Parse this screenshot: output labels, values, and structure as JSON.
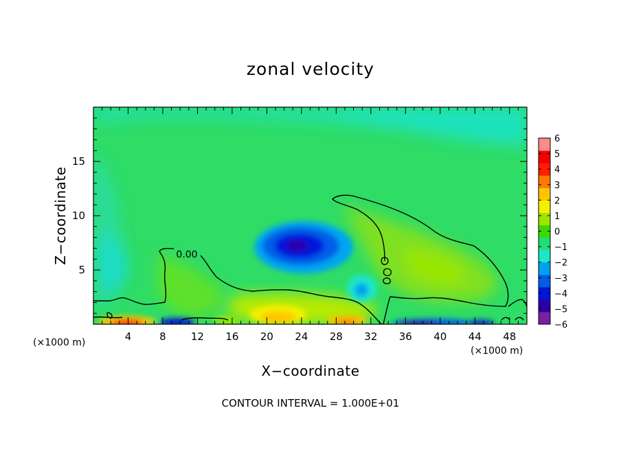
{
  "chart_data": {
    "type": "heatmap",
    "title": "zonal velocity",
    "xlabel": "X−coordinate",
    "ylabel": "Z−coordinate",
    "x_unit_left": "(×1000 m)",
    "x_unit_right": "(×1000 m)",
    "footnote": "CONTOUR INTERVAL = 1.000E+01",
    "xlim": [
      0,
      50
    ],
    "ylim": [
      0,
      20
    ],
    "x_ticks": [
      4,
      8,
      12,
      16,
      20,
      24,
      28,
      32,
      36,
      40,
      44,
      48
    ],
    "x_tick_labels": [
      "4",
      "8",
      "12",
      "16",
      "20",
      "24",
      "28",
      "32",
      "36",
      "40",
      "44",
      "48"
    ],
    "y_ticks": [
      5,
      10,
      15
    ],
    "y_tick_labels": [
      "5",
      "10",
      "15"
    ],
    "contour_label": "0.00",
    "colorbar": {
      "min": -6,
      "max": 6,
      "tick_labels": [
        "6",
        "5",
        "4",
        "3",
        "2",
        "1",
        "0",
        "−1",
        "−2",
        "−3",
        "−4",
        "−5",
        "−6"
      ],
      "colors": [
        "#7a1fa2",
        "#2b00a8",
        "#0016d9",
        "#005ee8",
        "#00a2f0",
        "#1ee6c8",
        "#1fde7c",
        "#3ed800",
        "#9ae600",
        "#f3f000",
        "#ffc400",
        "#ff7a00",
        "#ff1e00",
        "#f00000",
        "#ff8a8a"
      ]
    },
    "features": [
      {
        "type": "low",
        "x": 23.5,
        "z": 7.2,
        "value": -5
      },
      {
        "type": "low",
        "x": 31,
        "z": 3,
        "value": -2.5
      },
      {
        "type": "high",
        "x": 38,
        "z": 6,
        "value": 1
      },
      {
        "type": "high",
        "x": 22,
        "z": 1,
        "value": 3
      },
      {
        "type": "high",
        "x": 6,
        "z": 0.3,
        "value": 4
      },
      {
        "type": "low",
        "x": 38,
        "z": 0.2,
        "value": -5
      }
    ]
  }
}
